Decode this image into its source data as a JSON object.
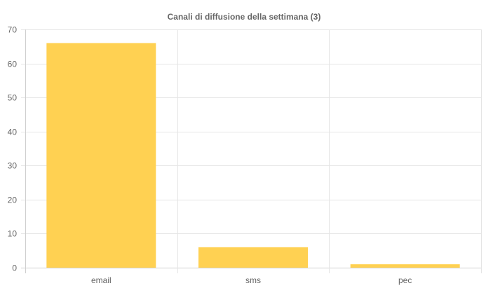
{
  "chart_data": {
    "type": "bar",
    "title": "Canali di diffusione della settimana (3)",
    "categories": [
      "email",
      "sms",
      "pec"
    ],
    "values": [
      66,
      6,
      1
    ],
    "ylim": [
      0,
      70
    ],
    "yticks": [
      0,
      10,
      20,
      30,
      40,
      50,
      60,
      70
    ],
    "xlabel": "",
    "ylabel": "",
    "grid": true,
    "legend": "none",
    "bar_color": "#FFD152",
    "grid_color": "#e5e5e5",
    "text_color": "#666666"
  }
}
